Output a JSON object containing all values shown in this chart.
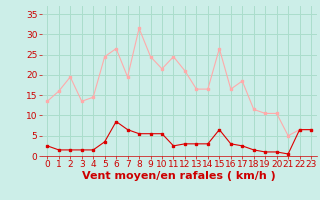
{
  "hours": [
    0,
    1,
    2,
    3,
    4,
    5,
    6,
    7,
    8,
    9,
    10,
    11,
    12,
    13,
    14,
    15,
    16,
    17,
    18,
    19,
    20,
    21,
    22,
    23
  ],
  "rafales": [
    13.5,
    16,
    19.5,
    13.5,
    14.5,
    24.5,
    26.5,
    19.5,
    31.5,
    24.5,
    21.5,
    24.5,
    21,
    16.5,
    16.5,
    26.5,
    16.5,
    18.5,
    11.5,
    10.5,
    10.5,
    5,
    6.5,
    6.5
  ],
  "moyen": [
    2.5,
    1.5,
    1.5,
    1.5,
    1.5,
    3.5,
    8.5,
    6.5,
    5.5,
    5.5,
    5.5,
    2.5,
    3,
    3,
    3,
    6.5,
    3,
    2.5,
    1.5,
    1,
    1,
    0.5,
    6.5,
    6.5
  ],
  "color_rafales": "#ffaaaa",
  "color_moyen": "#dd0000",
  "bg_color": "#cceee8",
  "grid_color": "#aaddcc",
  "xlabel": "Vent moyen/en rafales ( km/h )",
  "ylabel_ticks": [
    0,
    5,
    10,
    15,
    20,
    25,
    30,
    35
  ],
  "ylim": [
    0,
    37
  ],
  "xlim": [
    -0.5,
    23.5
  ],
  "xlabel_color": "#cc0000",
  "tick_color": "#cc0000",
  "axis_label_fontsize": 8,
  "tick_fontsize": 6.5
}
